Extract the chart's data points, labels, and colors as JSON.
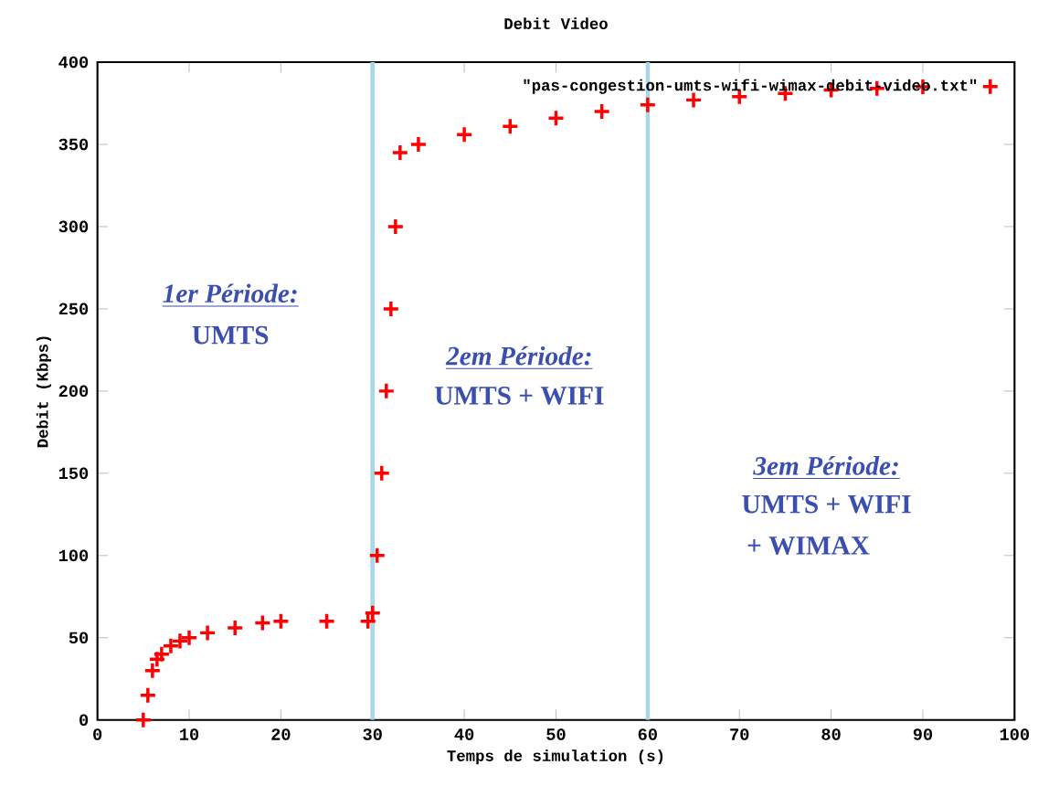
{
  "chart_data": {
    "type": "scatter",
    "title": "Debit Video",
    "xlabel": "Temps de simulation (s)",
    "ylabel": "Debit (Kbps)",
    "xlim": [
      0,
      100
    ],
    "xticks": [
      0,
      10,
      20,
      30,
      40,
      50,
      60,
      70,
      80,
      90,
      100
    ],
    "ylim": [
      0,
      400
    ],
    "yticks": [
      0,
      50,
      100,
      150,
      200,
      250,
      300,
      350,
      400
    ],
    "marker": "cross",
    "legend": "top right",
    "grid": false,
    "series": [
      {
        "name": "\"pas-congestion-umts-wifi-wimax-debit-video.txt\"",
        "color": "#ff0000",
        "x": [
          5,
          5.5,
          6,
          6.5,
          7,
          8,
          9,
          10,
          12,
          15,
          18,
          20,
          25,
          29.5,
          30,
          30.5,
          31,
          31.5,
          32,
          32.5,
          33,
          35,
          40,
          45,
          50,
          55,
          60,
          65,
          70,
          75,
          80,
          85,
          90
        ],
        "values": [
          0,
          15,
          30,
          37,
          40,
          45,
          48,
          50,
          53,
          56,
          59,
          60,
          60,
          60,
          65,
          100,
          150,
          200,
          250,
          300,
          345,
          350,
          356,
          361,
          366,
          370,
          374,
          377,
          379,
          381,
          383,
          384,
          385
        ]
      }
    ],
    "ref_lines": [
      {
        "axis": "x",
        "value": 30,
        "color": "#a8d8e8"
      },
      {
        "axis": "x",
        "value": 60,
        "color": "#a8d8e8"
      }
    ],
    "annotations": [
      "1er Période:",
      "UMTS",
      "2em Période:",
      "UMTS + WIFI",
      "3em Période:",
      "UMTS + WIFI",
      "+ WIMAX"
    ]
  }
}
